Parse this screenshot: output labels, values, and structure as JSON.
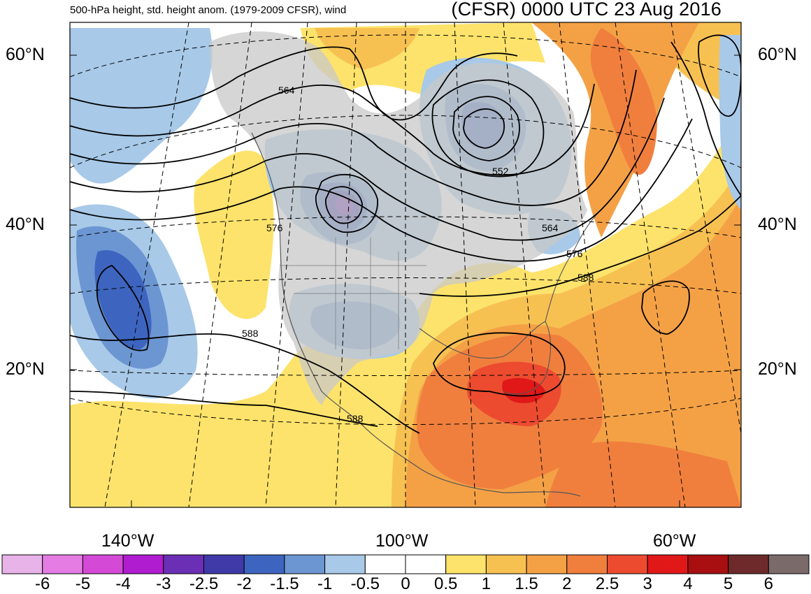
{
  "header": {
    "left_title": "500-hPa height, std. height anom. (1979-2009 CFSR), wind",
    "right_title": "(CFSR) 0000 UTC 23 Aug 2016"
  },
  "map": {
    "lat_labels_left": [
      "60°N",
      "40°N",
      "20°N"
    ],
    "lat_labels_right": [
      "60°N",
      "40°N",
      "20°N"
    ],
    "lon_labels": [
      "140°W",
      "100°W",
      "60°W"
    ],
    "contour_labels": [
      "564",
      "552",
      "576",
      "564",
      "576",
      "588",
      "588",
      "588"
    ],
    "land_color": "#c8c8c8",
    "coast_color": "#555555"
  },
  "colorbar": {
    "colors": [
      "#e8b3e8",
      "#e47ce4",
      "#d44ad6",
      "#b01ccf",
      "#6b2fb5",
      "#3f3aa8",
      "#3d65c0",
      "#6b96d2",
      "#a8c9e8",
      "#ffffff",
      "#ffffff",
      "#fde36b",
      "#f7c152",
      "#f4a146",
      "#f07f3e",
      "#ec4b30",
      "#e01818",
      "#a80f10",
      "#6e2a2a",
      "#7a6a6a"
    ],
    "labels": [
      "-6",
      "-5",
      "-4",
      "-3",
      "-2.5",
      "-2",
      "-1.5",
      "-1",
      "-0.5",
      "0",
      "0.5",
      "1",
      "1.5",
      "2",
      "2.5",
      "3",
      "4",
      "5",
      "6"
    ]
  }
}
